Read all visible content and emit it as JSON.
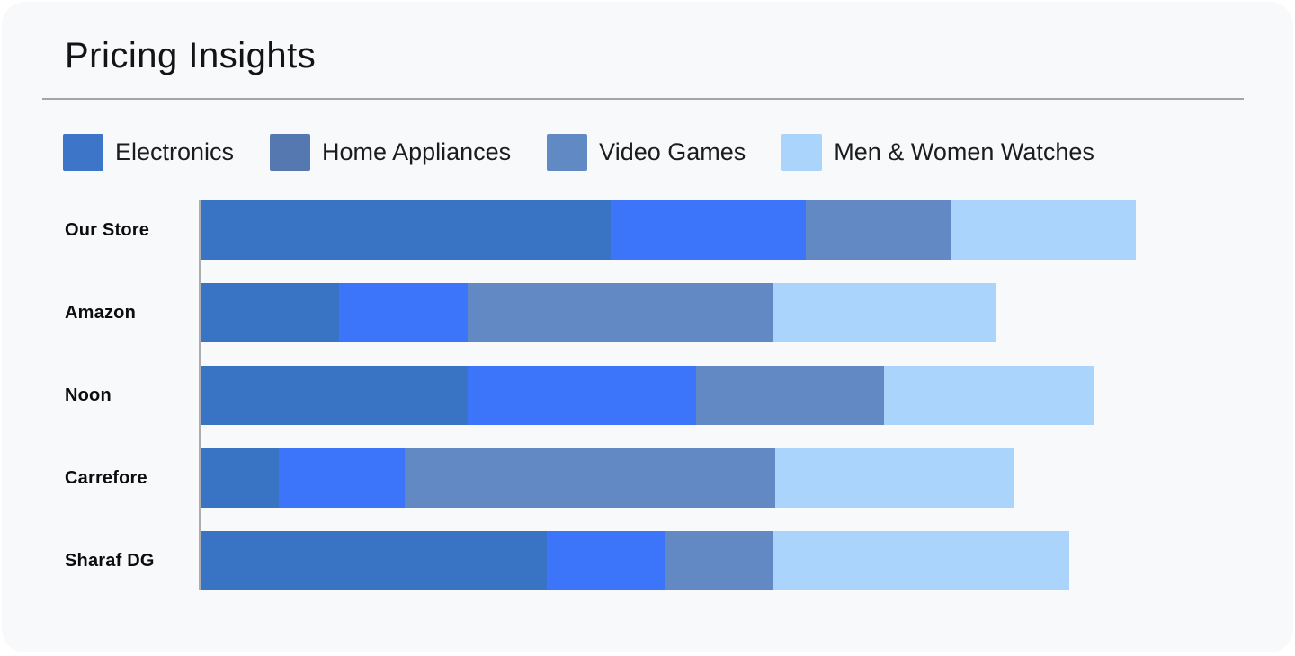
{
  "header": {
    "title": "Pricing Insights"
  },
  "theme": {
    "outer_bg": "#ffffff",
    "card_bg": "#f8f9fa",
    "divider": "#a5a5a5",
    "axis": "#aeaeb0",
    "title_color": "#141414",
    "label_color": "#0d0d0d",
    "legend_text": "#1c1c1c"
  },
  "chart_data": {
    "type": "bar",
    "orientation": "horizontal",
    "stacked": true,
    "title": "Pricing Insights",
    "legend_position": "top",
    "grid": false,
    "xlim": [
      0,
      100
    ],
    "categories": [
      "Our Store",
      "Amazon",
      "Noon",
      "Carrefore",
      "Sharaf DG"
    ],
    "series": [
      {
        "name": "Electronics",
        "legend_color": "#3d76c9",
        "bar_color": "#3973c4",
        "values": [
          39.0,
          13.1,
          25.4,
          7.4,
          32.9
        ]
      },
      {
        "name": "Home Appliances",
        "legend_color": "#5578b0",
        "bar_color": "#3c74fa",
        "values": [
          18.6,
          12.3,
          21.7,
          12.0,
          11.3
        ]
      },
      {
        "name": "Video Games",
        "legend_color": "#6189c4",
        "bar_color": "#6289c3",
        "values": [
          13.8,
          29.1,
          17.9,
          35.3,
          10.3
        ]
      },
      {
        "name": "Men & Women Watches",
        "legend_color": "#aad4fc",
        "bar_color": "#abd4fd",
        "values": [
          17.6,
          21.2,
          20.1,
          22.7,
          28.2
        ]
      }
    ]
  }
}
